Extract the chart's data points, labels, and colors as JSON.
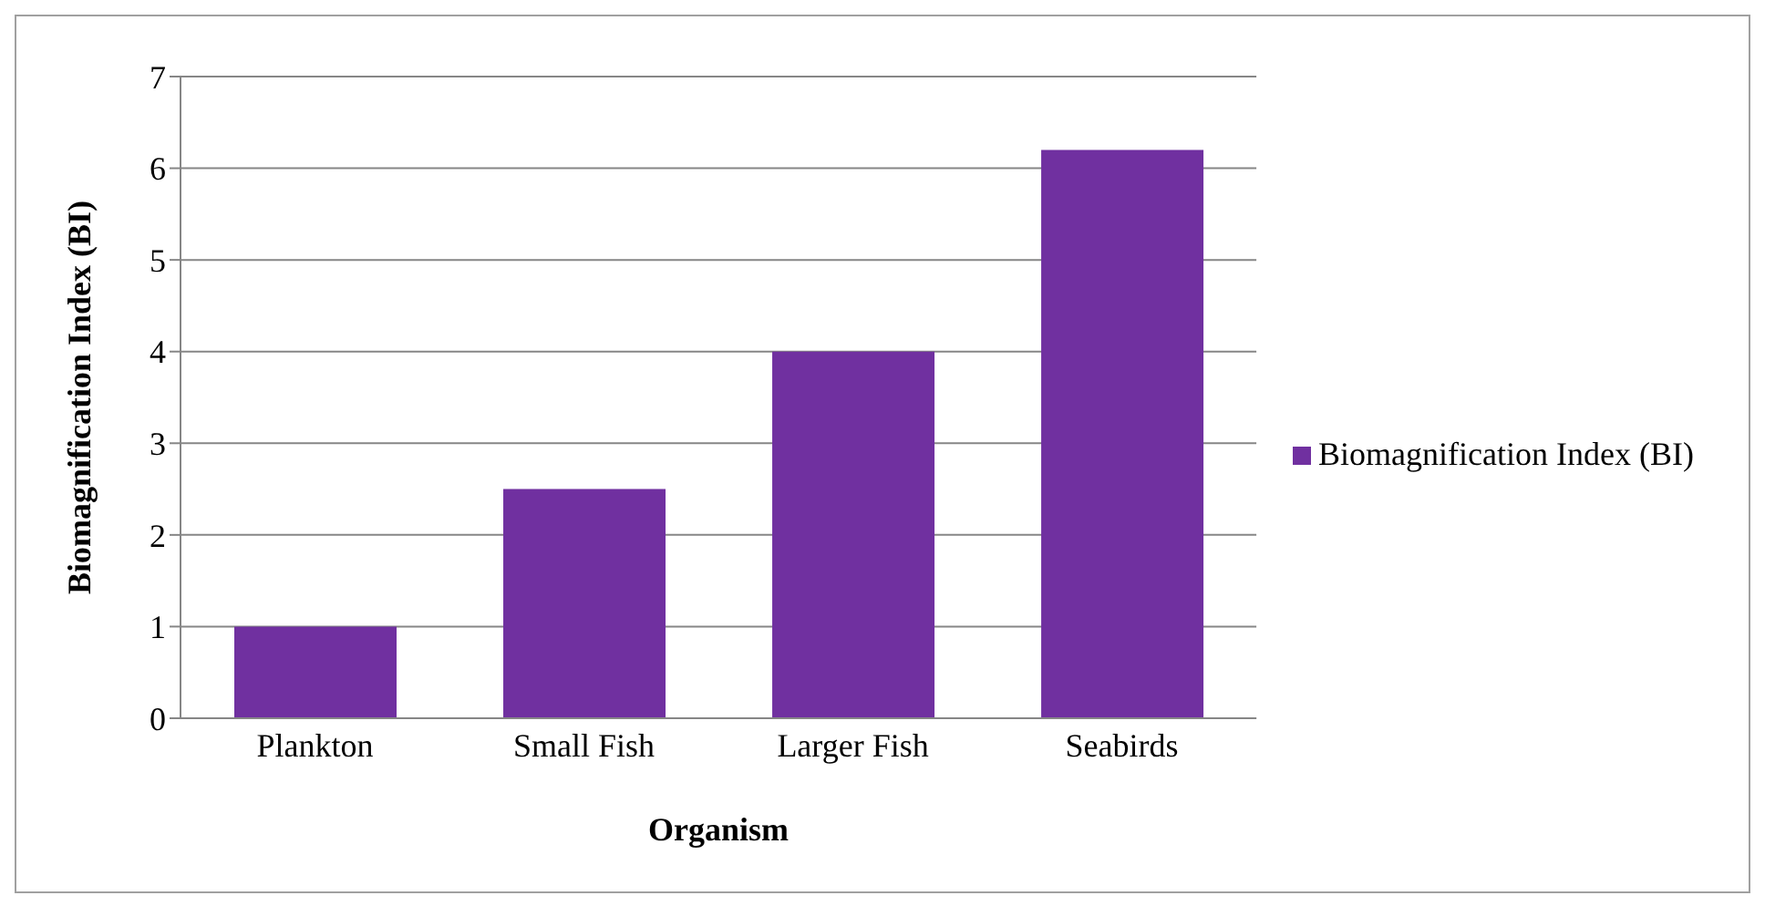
{
  "chart_data": {
    "type": "bar",
    "xlabel": "Organism",
    "ylabel": "Biomagnification Index (BI)",
    "categories": [
      "Plankton",
      "Small Fish",
      "Larger Fish",
      "Seabirds"
    ],
    "series": [
      {
        "name": "Biomagnification Index (BI)",
        "color": "#7030a0",
        "values": [
          1,
          2.5,
          4,
          6.2
        ]
      }
    ],
    "ylim": [
      0,
      7
    ],
    "yticks": [
      0,
      1,
      2,
      3,
      4,
      5,
      6,
      7
    ],
    "grid": "y",
    "legend": "right"
  }
}
